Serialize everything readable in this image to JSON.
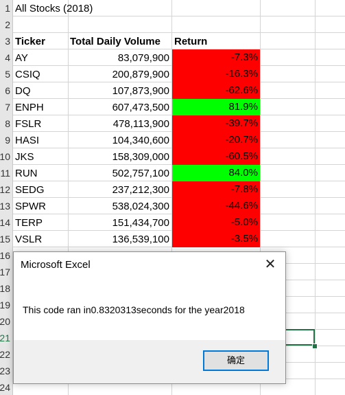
{
  "sheet": {
    "row_numbers": [
      "1",
      "2",
      "3",
      "4",
      "5",
      "6",
      "7",
      "8",
      "9",
      "10",
      "11",
      "12",
      "13",
      "14",
      "15",
      "16",
      "17",
      "18",
      "19",
      "20",
      "21",
      "22",
      "23",
      "24"
    ],
    "title": "All Stocks (2018)",
    "headers": {
      "ticker": "Ticker",
      "volume": "Total Daily Volume",
      "return": "Return"
    },
    "rows": [
      {
        "ticker": "AY",
        "volume": "83,079,900",
        "return": "-7.3%",
        "status": "negative"
      },
      {
        "ticker": "CSIQ",
        "volume": "200,879,900",
        "return": "-16.3%",
        "status": "negative"
      },
      {
        "ticker": "DQ",
        "volume": "107,873,900",
        "return": "-62.6%",
        "status": "negative"
      },
      {
        "ticker": "ENPH",
        "volume": "607,473,500",
        "return": "81.9%",
        "status": "positive"
      },
      {
        "ticker": "FSLR",
        "volume": "478,113,900",
        "return": "-39.7%",
        "status": "negative"
      },
      {
        "ticker": "HASI",
        "volume": "104,340,600",
        "return": "-20.7%",
        "status": "negative"
      },
      {
        "ticker": "JKS",
        "volume": "158,309,000",
        "return": "-60.5%",
        "status": "negative"
      },
      {
        "ticker": "RUN",
        "volume": "502,757,100",
        "return": "84.0%",
        "status": "positive"
      },
      {
        "ticker": "SEDG",
        "volume": "237,212,300",
        "return": "-7.8%",
        "status": "negative"
      },
      {
        "ticker": "SPWR",
        "volume": "538,024,300",
        "return": "-44.6%",
        "status": "negative"
      },
      {
        "ticker": "TERP",
        "volume": "151,434,700",
        "return": "-5.0%",
        "status": "negative"
      },
      {
        "ticker": "VSLR",
        "volume": "136,539,100",
        "return": "-3.5%",
        "status": "negative"
      }
    ],
    "colors": {
      "negative": "#ff0000",
      "positive": "#00ff00",
      "selection": "#217346"
    }
  },
  "dialog": {
    "title": "Microsoft Excel",
    "message": "This code ran in0.8320313seconds for the year2018",
    "ok_label": "确定",
    "close_icon": "close-icon"
  }
}
